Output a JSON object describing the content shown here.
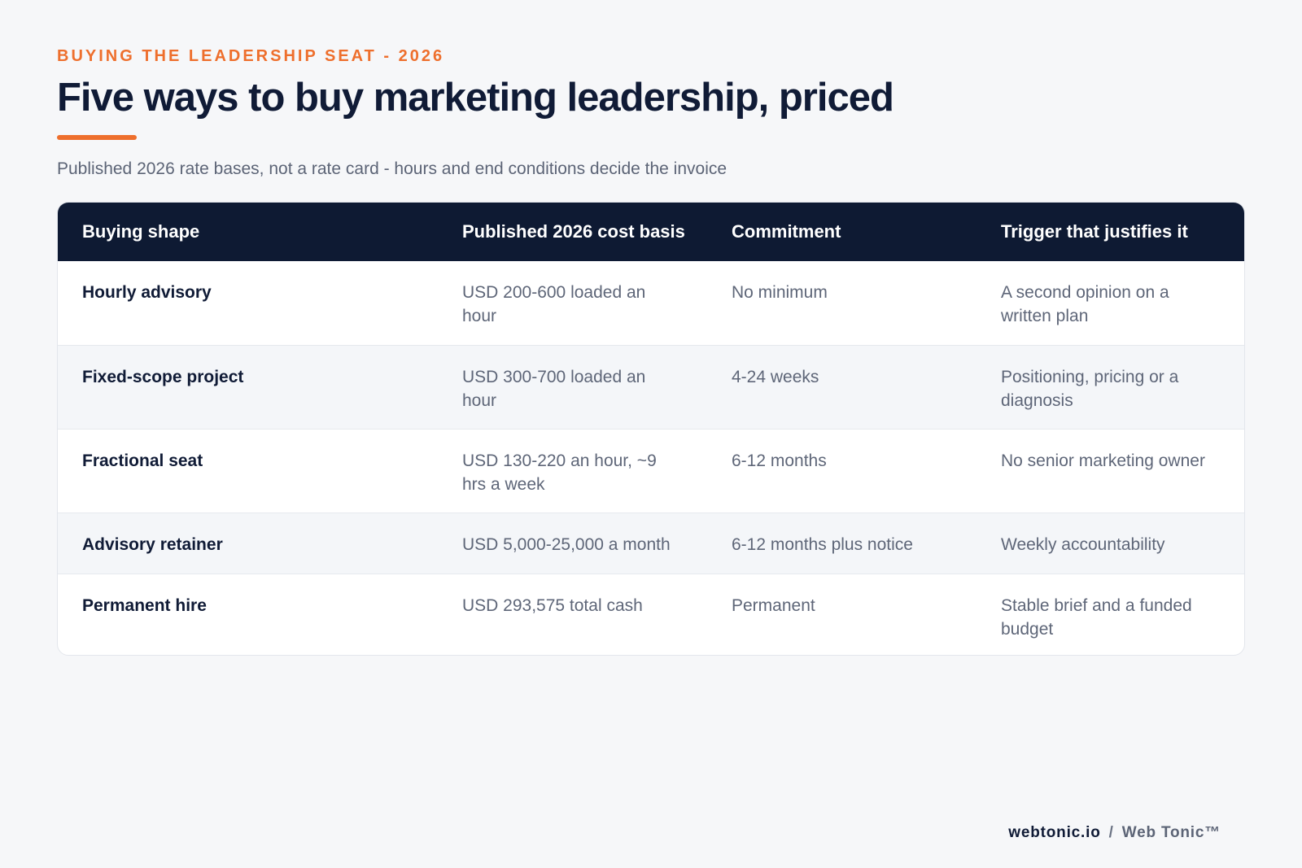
{
  "header": {
    "eyebrow": "BUYING THE LEADERSHIP SEAT - 2026",
    "title": "Five ways to buy marketing leadership, priced",
    "subtitle": "Published 2026 rate bases, not a rate card - hours and end conditions decide the invoice"
  },
  "table": {
    "columns": [
      "Buying shape",
      "Published 2026 cost basis",
      "Commitment",
      "Trigger that justifies it"
    ],
    "rows": [
      {
        "shape": "Hourly advisory",
        "cost": "USD 200-600 loaded an hour",
        "commitment": "No minimum",
        "trigger": "A second opinion on a written plan"
      },
      {
        "shape": "Fixed-scope project",
        "cost": "USD 300-700 loaded an hour",
        "commitment": "4-24 weeks",
        "trigger": "Positioning, pricing or a diagnosis"
      },
      {
        "shape": "Fractional seat",
        "cost": "USD 130-220 an hour, ~9 hrs a week",
        "commitment": "6-12 months",
        "trigger": "No senior marketing owner"
      },
      {
        "shape": "Advisory retainer",
        "cost": "USD 5,000-25,000 a month",
        "commitment": "6-12 months plus notice",
        "trigger": "Weekly accountability"
      },
      {
        "shape": "Permanent hire",
        "cost": "USD 293,575 total cash",
        "commitment": "Permanent",
        "trigger": "Stable brief and a funded budget"
      }
    ]
  },
  "footer": {
    "domain": "webtonic.io",
    "separator": "/",
    "brand": "Web Tonic™"
  },
  "colors": {
    "accent": "#ee6f2d",
    "header_bg": "#0e1a33",
    "page_bg": "#f6f7f9"
  }
}
